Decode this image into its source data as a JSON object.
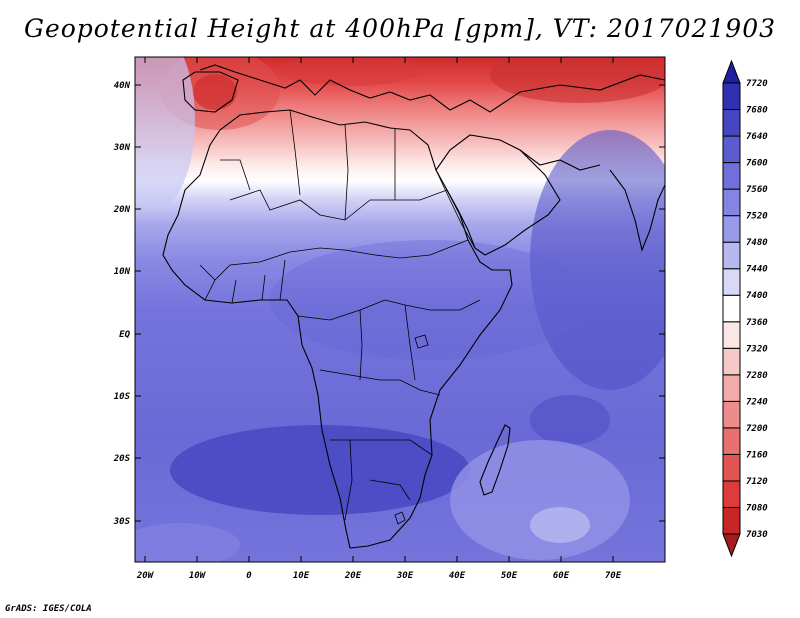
{
  "title": "Geopotential Height at 400hPa [gpm], VT: 2017021903",
  "credit": "GrADS: IGES/COLA",
  "map": {
    "lat_labels": [
      "40N",
      "30N",
      "20N",
      "10N",
      "EQ",
      "10S",
      "20S",
      "30S"
    ],
    "lon_labels": [
      "20W",
      "10W",
      "0",
      "10E",
      "20E",
      "30E",
      "40E",
      "50E",
      "60E",
      "70E"
    ]
  },
  "colorbar": {
    "levels": [
      "7030",
      "7080",
      "7120",
      "7160",
      "7200",
      "7240",
      "7280",
      "7320",
      "7360",
      "7400",
      "7440",
      "7480",
      "7520",
      "7560",
      "7600",
      "7640",
      "7680",
      "7720"
    ],
    "colors": [
      "#a51a1a",
      "#c52626",
      "#dd3c3c",
      "#e35555",
      "#e87070",
      "#ee8b8b",
      "#f3aaaa",
      "#f7c8c8",
      "#fbe6e6",
      "#ffffff",
      "#d8d8f7",
      "#b8b8f0",
      "#9a9aea",
      "#8484e3",
      "#7070da",
      "#5c5cd0",
      "#4646c4",
      "#3030b3",
      "#1f1fa0"
    ]
  },
  "colors": {
    "ocean_fill": "#6b6bd9",
    "border": "#000000"
  }
}
